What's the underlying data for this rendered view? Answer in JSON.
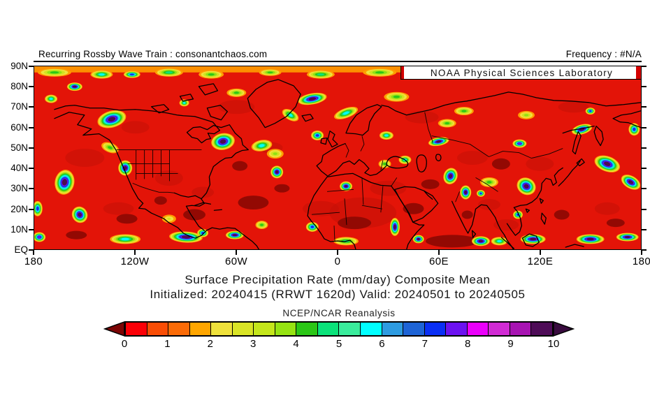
{
  "header": {
    "left": "Recurring Rossby Wave Train : consonantchaos.com",
    "right": "Frequency : #N/A"
  },
  "banner": {
    "text": "NOAA Physical Sciences Laboratory",
    "accent_color": "#d40000"
  },
  "axes": {
    "lat_labels": [
      "90N",
      "80N",
      "70N",
      "60N",
      "50N",
      "40N",
      "30N",
      "20N",
      "10N",
      "EQ"
    ],
    "lon_labels": [
      "180",
      "120W",
      "60W",
      "0",
      "60E",
      "120E",
      "180"
    ]
  },
  "caption": {
    "line1": "Surface Precipitation Rate (mm/day) Composite Mean",
    "line2": "Initialized: 20240415 (RRWT 1620d) Valid: 20240501 to 20240505"
  },
  "colorbar": {
    "label": "NCEP/NCAR Reanalysis",
    "tick_labels": [
      "0",
      "1",
      "2",
      "3",
      "4",
      "5",
      "6",
      "7",
      "8",
      "9",
      "10"
    ],
    "left_arrow": "#7C0404",
    "right_arrow": "#380B3E",
    "segments": [
      "#FB0007",
      "#F94D05",
      "#FB6B07",
      "#FFA600",
      "#EFE13B",
      "#D9E426",
      "#C4E61B",
      "#96E312",
      "#2BC616",
      "#0BE27A",
      "#3AEC9C",
      "#01FFFF",
      "#2E9BE0",
      "#1E64D6",
      "#0A2FF5",
      "#6C12F0",
      "#EB00FB",
      "#D12BD4",
      "#A714B2",
      "#4E0C57"
    ]
  },
  "chart_data": {
    "type": "heatmap",
    "variable": "Surface Precipitation Rate",
    "units": "mm/day",
    "statistic": "Composite Mean",
    "dataset": "NCEP/NCAR Reanalysis",
    "initialized": "20240415",
    "composite_label": "RRWT 1620d",
    "valid_from": "20240501",
    "valid_to": "20240505",
    "frequency": "#N/A",
    "map_extent": {
      "lon_min": -180,
      "lon_max": 180,
      "lat_min": 0,
      "lat_max": 90
    },
    "x_ticks_deg": [
      -180,
      -120,
      -60,
      0,
      60,
      120,
      180
    ],
    "y_ticks_deg": [
      90,
      80,
      70,
      60,
      50,
      40,
      30,
      20,
      10,
      0
    ],
    "scale": {
      "min": 0,
      "max": 10,
      "step": 0.5,
      "tick_labels": [
        0,
        1,
        2,
        3,
        4,
        5,
        6,
        7,
        8,
        9,
        10
      ],
      "below_min_color": "#7C0404",
      "above_max_color": "#380B3E"
    },
    "background_color": "#E31408",
    "shading_color": "#C51108",
    "dry_color": "#8C0903",
    "polar_band": {
      "lat_from": 87,
      "color": "#FF9A00"
    },
    "contour_palette": [
      [
        2,
        "#FF9E00"
      ],
      [
        2.5,
        "#F0E13C"
      ],
      [
        3,
        "#CFE41F"
      ],
      [
        3.5,
        "#8FE014"
      ],
      [
        4,
        "#2BC616"
      ],
      [
        5,
        "#0BE27A"
      ],
      [
        6,
        "#01FFFF"
      ],
      [
        6.5,
        "#2E9BE0"
      ],
      [
        7,
        "#0D2FF0"
      ],
      [
        8,
        "#6C12F0"
      ],
      [
        9,
        "#4A0C50"
      ]
    ],
    "hotspots": [
      [
        -168,
        87,
        4,
        24,
        6,
        0
      ],
      [
        -140,
        86,
        6,
        16,
        6,
        0
      ],
      [
        -122,
        86,
        7,
        12,
        5,
        0
      ],
      [
        -100,
        87,
        5,
        20,
        6,
        0
      ],
      [
        -75,
        86,
        4,
        18,
        6,
        0
      ],
      [
        -40,
        87,
        4,
        16,
        5,
        0
      ],
      [
        -10,
        86,
        5,
        20,
        6,
        0
      ],
      [
        25,
        87,
        4,
        24,
        6,
        0
      ],
      [
        60,
        87,
        5,
        26,
        6,
        0
      ],
      [
        95,
        86,
        4,
        20,
        6,
        0
      ],
      [
        130,
        86,
        6,
        14,
        5,
        0
      ],
      [
        162,
        87,
        5,
        24,
        6,
        0
      ],
      [
        -156,
        80,
        9,
        11,
        6,
        0
      ],
      [
        -170,
        74,
        6,
        9,
        6,
        0
      ],
      [
        -134,
        64,
        9,
        21,
        12,
        -15
      ],
      [
        -91,
        72,
        6,
        7,
        5,
        0
      ],
      [
        -68,
        53,
        10,
        17,
        12,
        -10
      ],
      [
        -126,
        40,
        9,
        10,
        11,
        0
      ],
      [
        -135,
        50,
        4,
        13,
        7,
        20
      ],
      [
        -45,
        51,
        6,
        15,
        8,
        -10
      ],
      [
        -37,
        47,
        3.5,
        12,
        7,
        0
      ],
      [
        -36,
        38,
        10,
        9,
        9,
        0
      ],
      [
        -15,
        74,
        10,
        21,
        8,
        -10
      ],
      [
        -28,
        66,
        6,
        13,
        7,
        30
      ],
      [
        -12,
        56,
        7,
        9,
        7,
        0
      ],
      [
        5,
        67,
        6,
        18,
        7,
        -20
      ],
      [
        29,
        56,
        6,
        10,
        6,
        0
      ],
      [
        40,
        44,
        6,
        9,
        6,
        0
      ],
      [
        28,
        42,
        4,
        9,
        6,
        0
      ],
      [
        60,
        53,
        9,
        15,
        6,
        -10
      ],
      [
        65,
        62,
        4,
        13,
        6,
        0
      ],
      [
        -60,
        77,
        4,
        14,
        6,
        0
      ],
      [
        35,
        75,
        4,
        18,
        7,
        0
      ],
      [
        75,
        68,
        4,
        14,
        6,
        0
      ],
      [
        112,
        66,
        3.5,
        12,
        6,
        0
      ],
      [
        150,
        68,
        7,
        7,
        5,
        0
      ],
      [
        145,
        59,
        9,
        15,
        7,
        -15
      ],
      [
        108,
        52,
        8,
        10,
        6,
        0
      ],
      [
        176,
        59,
        7,
        8,
        9,
        0
      ],
      [
        -178,
        20,
        7,
        7,
        11,
        0
      ],
      [
        67,
        36,
        10,
        10,
        12,
        20
      ],
      [
        76,
        28,
        9,
        8,
        10,
        0
      ],
      [
        90,
        33,
        4,
        13,
        7,
        0
      ],
      [
        85,
        27.5,
        7,
        6,
        5,
        0
      ],
      [
        112,
        31,
        10,
        14,
        12,
        30
      ],
      [
        160,
        42,
        10,
        19,
        11,
        20
      ],
      [
        174,
        33,
        10,
        15,
        9,
        30
      ],
      [
        5,
        31,
        10,
        9,
        7,
        0
      ],
      [
        -162,
        33,
        10,
        14,
        18,
        10
      ],
      [
        -153,
        17,
        9,
        11,
        12,
        -30
      ],
      [
        -126,
        5,
        6,
        22,
        7,
        0
      ],
      [
        -90,
        6,
        10,
        24,
        8,
        3
      ],
      [
        -61,
        7,
        9,
        13,
        6,
        0
      ],
      [
        -45,
        12,
        4,
        9,
        6,
        0
      ],
      [
        -80,
        8,
        7,
        8,
        6,
        0
      ],
      [
        -15,
        11,
        7,
        9,
        7,
        0
      ],
      [
        5,
        4,
        5,
        18,
        6,
        0
      ],
      [
        34,
        11,
        9,
        7,
        13,
        0
      ],
      [
        48,
        5,
        10,
        8,
        6,
        0
      ],
      [
        85,
        4,
        10,
        13,
        7,
        0
      ],
      [
        96,
        4,
        6,
        12,
        6,
        0
      ],
      [
        107,
        17,
        7,
        7,
        6,
        0
      ],
      [
        116,
        5,
        10,
        18,
        7,
        0
      ],
      [
        150,
        5,
        10,
        20,
        7,
        0
      ],
      [
        172,
        6,
        9,
        16,
        6,
        0
      ],
      [
        -177,
        6,
        8,
        9,
        7,
        0
      ],
      [
        -100,
        15,
        3,
        10,
        6,
        0
      ]
    ],
    "dry_patches": [
      [
        68,
        4,
        38,
        9
      ],
      [
        -50,
        23,
        22,
        10
      ],
      [
        -85,
        17,
        16,
        8
      ],
      [
        -105,
        24,
        9,
        6
      ],
      [
        45,
        20,
        15,
        8
      ],
      [
        77,
        17,
        8,
        6
      ],
      [
        -155,
        7,
        15,
        6
      ],
      [
        -125,
        15,
        15,
        7
      ],
      [
        97,
        42,
        13,
        8
      ],
      [
        165,
        13,
        13,
        6
      ],
      [
        10,
        13,
        24,
        9
      ],
      [
        -33,
        30,
        11,
        6
      ],
      [
        133,
        17,
        11,
        7
      ],
      [
        55,
        32,
        13,
        7
      ],
      [
        -58,
        41,
        11,
        7
      ]
    ],
    "shading_patches": [
      [
        15,
        18,
        48,
        22
      ],
      [
        -150,
        45,
        28,
        13
      ],
      [
        -60,
        70,
        26,
        10
      ],
      [
        -100,
        35,
        20,
        11
      ],
      [
        -10,
        20,
        26,
        11
      ],
      [
        30,
        30,
        26,
        11
      ],
      [
        80,
        45,
        22,
        10
      ],
      [
        120,
        42,
        20,
        10
      ],
      [
        160,
        20,
        18,
        9
      ],
      [
        -130,
        20,
        22,
        9
      ],
      [
        50,
        65,
        24,
        9
      ],
      [
        100,
        12,
        18,
        8
      ],
      [
        -40,
        50,
        18,
        8
      ],
      [
        140,
        70,
        22,
        8
      ],
      [
        -80,
        28,
        16,
        8
      ],
      [
        -120,
        60,
        20,
        9
      ],
      [
        90,
        22,
        16,
        8
      ]
    ]
  }
}
